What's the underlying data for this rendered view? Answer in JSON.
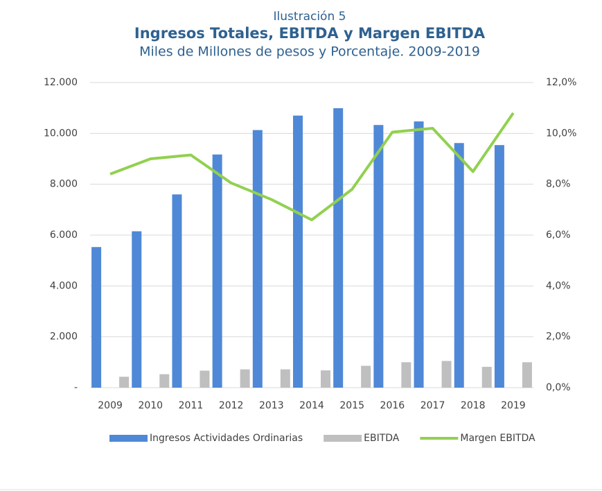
{
  "chart_data": {
    "type": "bar_line",
    "pretitle": "Ilustración 5",
    "title": "Ingresos Totales, EBITDA y Margen EBITDA",
    "subtitle": "Miles de Millones de pesos y Porcentaje. 2009-2019",
    "categories": [
      "2009",
      "2010",
      "2011",
      "2012",
      "2013",
      "2014",
      "2015",
      "2016",
      "2017",
      "2018",
      "2019"
    ],
    "series": [
      {
        "name": "Ingresos Actividades Ordinarias",
        "color": "#4f88d6",
        "type": "bar",
        "values": [
          5530,
          6150,
          7600,
          9170,
          10130,
          10700,
          10990,
          10330,
          10470,
          9620,
          9540
        ]
      },
      {
        "name": "EBITDA",
        "color": "#bfbfbf",
        "type": "bar",
        "values": [
          430,
          530,
          670,
          720,
          720,
          680,
          860,
          1000,
          1050,
          820,
          1000
        ]
      },
      {
        "name": "Margen EBITDA",
        "color": "#92d050",
        "type": "line",
        "axis": "y2",
        "values": [
          8.4,
          9.0,
          9.15,
          8.05,
          7.4,
          6.6,
          7.8,
          10.05,
          10.2,
          8.5,
          10.8
        ]
      }
    ],
    "ylim": [
      0,
      12000
    ],
    "yticks": [
      {
        "value": 0,
        "label": "-"
      },
      {
        "value": 2000,
        "label": "2.000"
      },
      {
        "value": 4000,
        "label": "4.000"
      },
      {
        "value": 6000,
        "label": "6.000"
      },
      {
        "value": 8000,
        "label": "8.000"
      },
      {
        "value": 10000,
        "label": "10.000"
      },
      {
        "value": 12000,
        "label": "12.000"
      }
    ],
    "y2lim": [
      0,
      12
    ],
    "y2ticks": [
      {
        "value": 0,
        "label": "0,0%"
      },
      {
        "value": 2,
        "label": "2,0%"
      },
      {
        "value": 4,
        "label": "4,0%"
      },
      {
        "value": 6,
        "label": "6,0%"
      },
      {
        "value": 8,
        "label": "8,0%"
      },
      {
        "value": 10,
        "label": "10,0%"
      },
      {
        "value": 12,
        "label": "12,0%"
      }
    ],
    "grid": true,
    "legend": "bottom"
  }
}
